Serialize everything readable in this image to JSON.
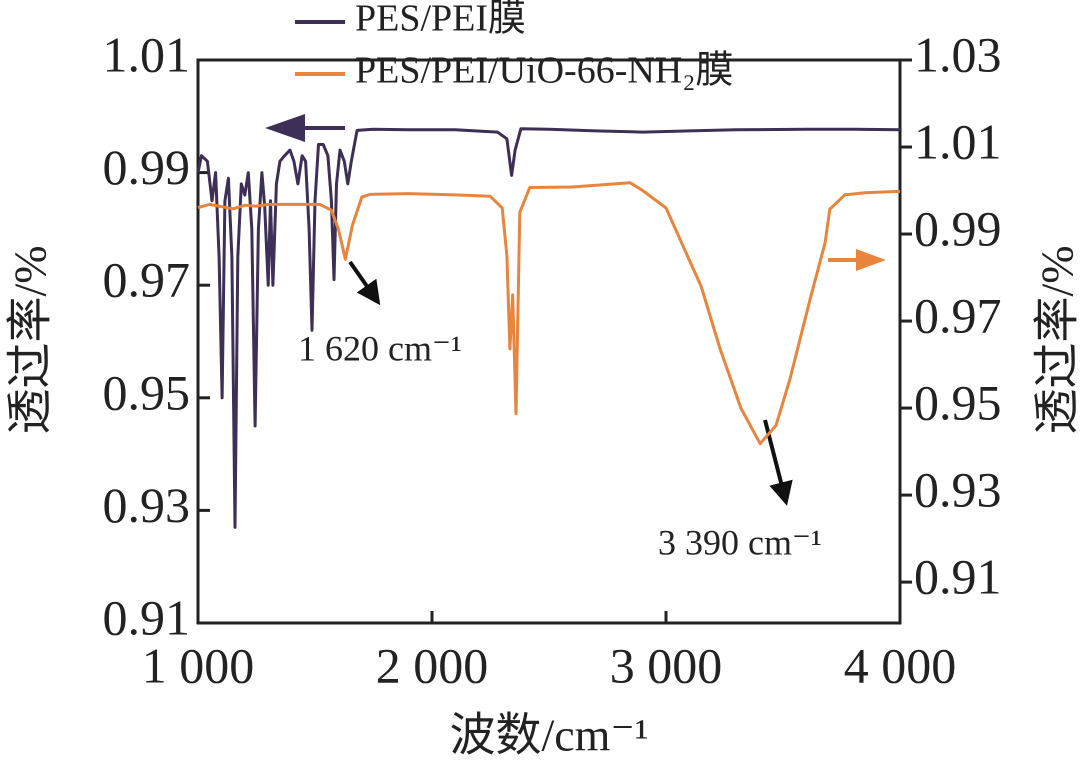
{
  "chart_data": {
    "type": "line",
    "xlabel": "波数/cm⁻¹",
    "ylabel": "透过率/%",
    "y2label": "透过率/%",
    "xlim": [
      1000,
      4000
    ],
    "xticks": [
      {
        "value": 1000,
        "label": "1 000"
      },
      {
        "value": 2000,
        "label": "2 000"
      },
      {
        "value": 3000,
        "label": "3 000"
      },
      {
        "value": 4000,
        "label": "4 000"
      }
    ],
    "ylim": [
      0.91,
      1.01
    ],
    "yticks": [
      0.91,
      0.93,
      0.95,
      0.97,
      0.99,
      1.01
    ],
    "y2lim": [
      0.9006,
      1.03
    ],
    "y2ticks": [
      0.91,
      0.93,
      0.95,
      0.97,
      0.99,
      1.01,
      1.03
    ],
    "legend": "top",
    "annotations": [
      "1 620 cm⁻¹",
      "3 390 cm⁻¹"
    ],
    "series": [
      {
        "name": "PES/PEI膜",
        "color": "#3d2f55",
        "axis": "y",
        "x": [
          1000,
          1015,
          1040,
          1060,
          1075,
          1090,
          1103,
          1115,
          1130,
          1145,
          1158,
          1170,
          1185,
          1200,
          1215,
          1230,
          1244,
          1258,
          1273,
          1285,
          1300,
          1310,
          1320,
          1335,
          1350,
          1370,
          1393,
          1410,
          1427,
          1445,
          1460,
          1475,
          1487,
          1500,
          1515,
          1535,
          1555,
          1570,
          1581,
          1592,
          1607,
          1625,
          1640,
          1655,
          1680,
          1750,
          1900,
          2100,
          2280,
          2320,
          2340,
          2355,
          2380,
          2500,
          2700,
          2900,
          3100,
          3300,
          3600,
          3800,
          4000
        ],
        "values": [
          0.99,
          0.993,
          0.992,
          0.985,
          0.99,
          0.975,
          0.95,
          0.985,
          0.989,
          0.975,
          0.927,
          0.975,
          0.988,
          0.986,
          0.99,
          0.98,
          0.945,
          0.98,
          0.99,
          0.984,
          0.97,
          0.985,
          0.97,
          0.988,
          0.992,
          0.993,
          0.994,
          0.992,
          0.988,
          0.993,
          0.992,
          0.98,
          0.962,
          0.985,
          0.995,
          0.995,
          0.993,
          0.985,
          0.971,
          0.988,
          0.994,
          0.992,
          0.988,
          0.992,
          0.9975,
          0.9977,
          0.9976,
          0.9976,
          0.9972,
          0.996,
          0.9895,
          0.994,
          0.9978,
          0.9977,
          0.9974,
          0.9972,
          0.9974,
          0.9976,
          0.9977,
          0.9977,
          0.9976
        ]
      },
      {
        "name": "PES/PEI/UiO-66-NH₂膜",
        "color": "#e8843c",
        "axis": "y2",
        "x": [
          1000,
          1050,
          1100,
          1150,
          1200,
          1250,
          1300,
          1400,
          1520,
          1570,
          1600,
          1630,
          1660,
          1700,
          1735,
          1900,
          2100,
          2248,
          2300,
          2320,
          2333,
          2345,
          2359,
          2375,
          2418,
          2600,
          2846,
          2900,
          3000,
          3060,
          3150,
          3231,
          3320,
          3402,
          3470,
          3530,
          3616,
          3680,
          3700,
          3764,
          3850,
          4000
        ],
        "values": [
          0.9961,
          0.9968,
          0.9963,
          0.9958,
          0.9966,
          0.9964,
          0.9968,
          0.9968,
          0.9968,
          0.9955,
          0.9911,
          0.9842,
          0.992,
          0.9985,
          0.9991,
          0.9993,
          0.999,
          0.9987,
          0.996,
          0.985,
          0.9636,
          0.976,
          0.9487,
          0.995,
          1.0007,
          1.0008,
          1.0018,
          1.0,
          0.996,
          0.9888,
          0.978,
          0.9636,
          0.95,
          0.9418,
          0.946,
          0.9567,
          0.975,
          0.988,
          0.9957,
          0.999,
          0.9995,
          0.9998
        ]
      }
    ]
  }
}
